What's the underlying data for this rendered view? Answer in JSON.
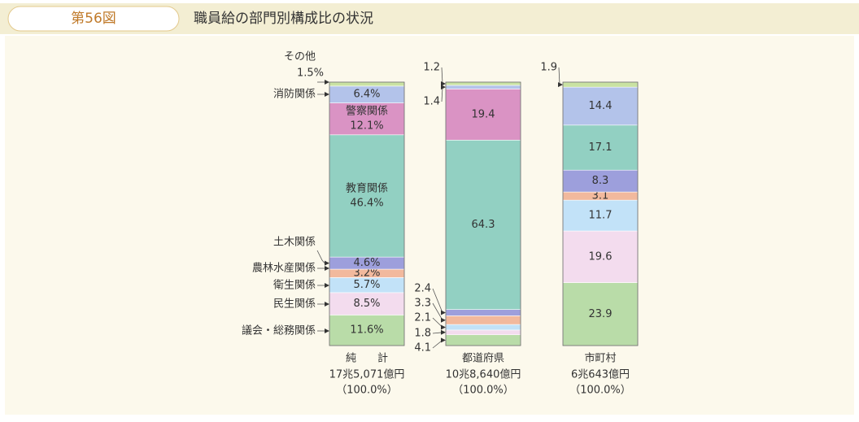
{
  "header": {
    "figure": "第56図",
    "title": "職員給の部門別構成比の状況"
  },
  "chart_data": {
    "type": "stacked_bar",
    "categories": [
      "純　　計",
      "都道府県",
      "市町村"
    ],
    "totals": [
      "17兆5,071億円",
      "10兆8,640億円",
      "6兆643億円"
    ],
    "shares": [
      "（100.0%）",
      "（100.0%）",
      "（100.0%）"
    ],
    "ylim": [
      0,
      100
    ],
    "series": [
      {
        "name": "議会・総務関係",
        "color": "#b9dca8",
        "values": [
          11.6,
          4.1,
          23.9
        ],
        "value_labels": [
          "11.6%",
          "4.1",
          "23.9"
        ]
      },
      {
        "name": "民生関係",
        "color": "#f3dcee",
        "values": [
          8.5,
          1.8,
          19.6
        ],
        "value_labels": [
          "8.5%",
          "1.8",
          "19.6"
        ]
      },
      {
        "name": "衛生関係",
        "color": "#c2e2f8",
        "values": [
          5.7,
          2.1,
          11.7
        ],
        "value_labels": [
          "5.7%",
          "2.1",
          "11.7"
        ]
      },
      {
        "name": "農林水産関係",
        "color": "#f2b99d",
        "values": [
          3.2,
          3.3,
          3.1
        ],
        "value_labels": [
          "3.2%",
          "3.3",
          "3.1"
        ]
      },
      {
        "name": "土木関係",
        "color": "#9d9fdc",
        "values": [
          4.6,
          2.4,
          8.3
        ],
        "value_labels": [
          "4.6%",
          "2.4",
          "8.3"
        ]
      },
      {
        "name": "教育関係",
        "color": "#92d0c2",
        "values": [
          46.4,
          64.3,
          17.1
        ],
        "value_labels": [
          "46.4%",
          "64.3",
          "17.1"
        ]
      },
      {
        "name": "警察関係",
        "color": "#da93c4",
        "values": [
          12.1,
          19.4,
          null
        ],
        "value_labels": [
          "12.1%",
          "19.4",
          null
        ]
      },
      {
        "name": "消防関係",
        "color": "#b3c3ea",
        "values": [
          6.4,
          1.4,
          14.4
        ],
        "value_labels": [
          "6.4%",
          "1.4",
          "14.4"
        ]
      },
      {
        "name": "その他",
        "color": "#c9e2a2",
        "values": [
          1.5,
          1.2,
          1.9
        ],
        "value_labels": [
          "1.5%",
          "1.2",
          "1.9"
        ]
      }
    ]
  }
}
